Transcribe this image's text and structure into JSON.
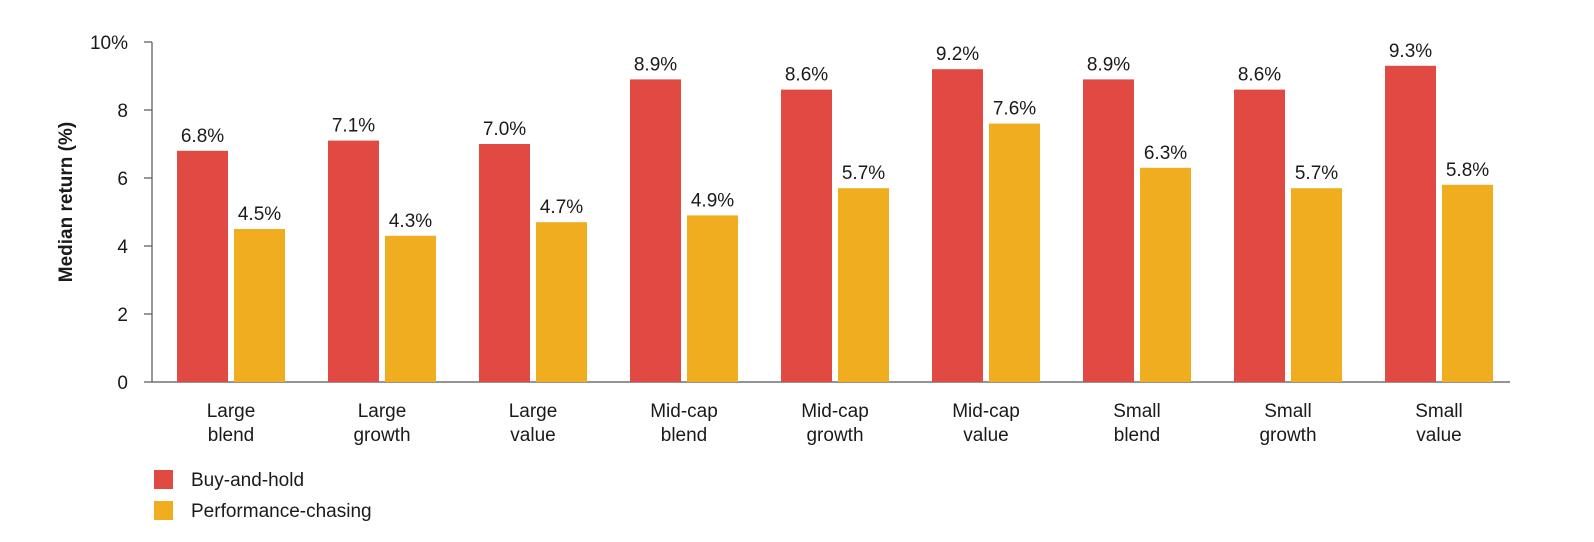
{
  "chart_data": {
    "type": "bar",
    "ylabel": "Median return (%)",
    "ylim": [
      0,
      10
    ],
    "yticks": [
      {
        "value": 0,
        "label": "0"
      },
      {
        "value": 2,
        "label": "2"
      },
      {
        "value": 4,
        "label": "4"
      },
      {
        "value": 6,
        "label": "6"
      },
      {
        "value": 8,
        "label": "8"
      },
      {
        "value": 10,
        "label": "10%"
      }
    ],
    "categories": [
      [
        "Large",
        "blend"
      ],
      [
        "Large",
        "growth"
      ],
      [
        "Large",
        "value"
      ],
      [
        "Mid-cap",
        "blend"
      ],
      [
        "Mid-cap",
        "growth"
      ],
      [
        "Mid-cap",
        "value"
      ],
      [
        "Small",
        "blend"
      ],
      [
        "Small",
        "growth"
      ],
      [
        "Small",
        "value"
      ]
    ],
    "series": [
      {
        "name": "Buy-and-hold",
        "color": "#e04a43",
        "values": [
          6.8,
          7.1,
          7.0,
          8.9,
          8.6,
          9.2,
          8.9,
          8.6,
          9.3
        ],
        "labels": [
          "6.8%",
          "7.1%",
          "7.0%",
          "8.9%",
          "8.6%",
          "9.2%",
          "8.9%",
          "8.6%",
          "9.3%"
        ]
      },
      {
        "name": "Performance-chasing",
        "color": "#efad1f",
        "values": [
          4.5,
          4.3,
          4.7,
          4.9,
          5.7,
          7.6,
          6.3,
          5.7,
          5.8
        ],
        "labels": [
          "4.5%",
          "4.3%",
          "4.7%",
          "4.9%",
          "5.7%",
          "7.6%",
          "6.3%",
          "5.7%",
          "5.8%"
        ]
      }
    ],
    "grid": false,
    "legend_position": "bottom-left"
  }
}
